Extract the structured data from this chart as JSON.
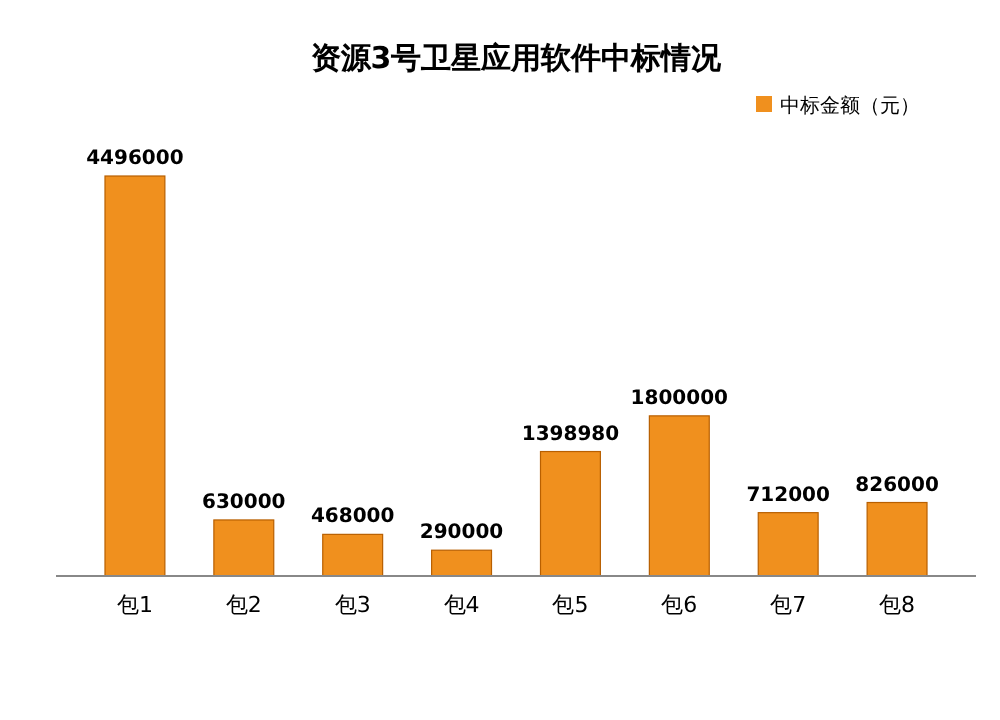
{
  "chart_data": {
    "type": "bar",
    "title": "资源3号卫星应用软件中标情况",
    "categories": [
      "包1",
      "包2",
      "包3",
      "包4",
      "包5",
      "包6",
      "包7",
      "包8"
    ],
    "series": [
      {
        "name": "中标金额（元）",
        "color": "#f0901e",
        "values": [
          4496000,
          630000,
          468000,
          290000,
          1398980,
          1800000,
          712000,
          826000
        ]
      }
    ],
    "data_labels": true,
    "legend": "top right"
  }
}
